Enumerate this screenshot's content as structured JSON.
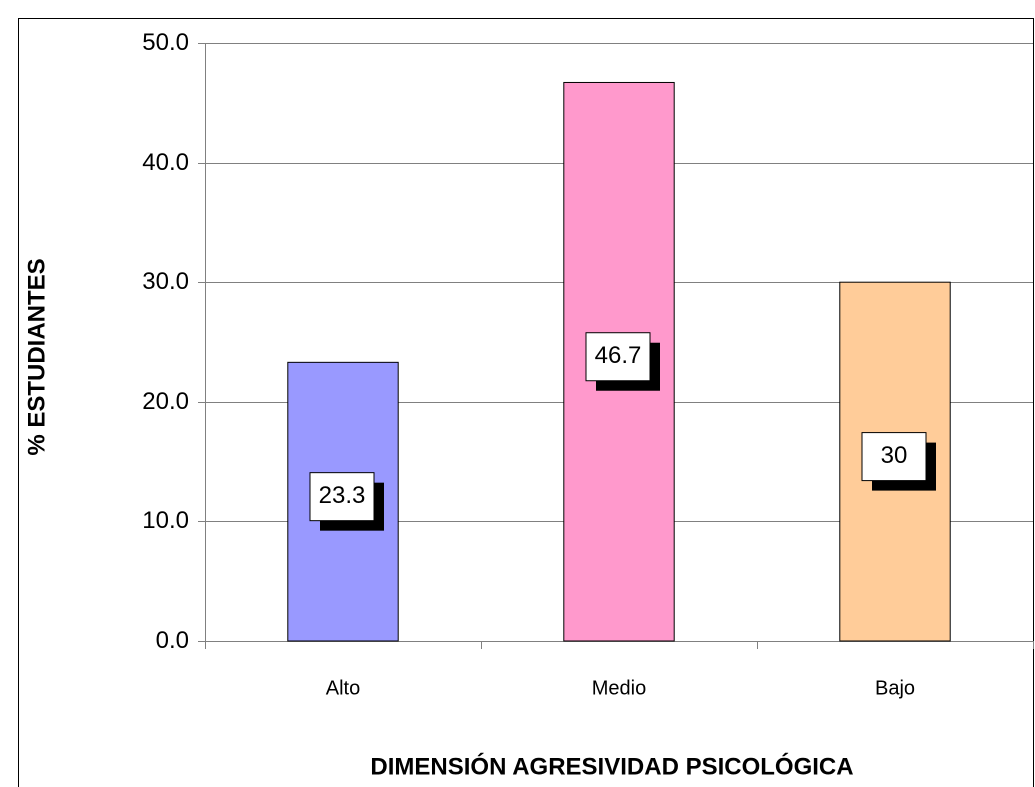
{
  "chart_data": {
    "type": "bar",
    "x_label": "DIMENSIÓN AGRESIVIDAD PSICOLÓGICA",
    "y_label": "% ESTUDIANTES",
    "categories": [
      "Alto",
      "Medio",
      "Bajo"
    ],
    "values": [
      23.3,
      46.7,
      30.0
    ],
    "colors": [
      "#9999ff",
      "#ff99cc",
      "#ffcc99"
    ],
    "ylim": [
      0,
      50
    ],
    "yticks": [
      {
        "value": 0,
        "label": "0.0"
      },
      {
        "value": 10,
        "label": "10.0"
      },
      {
        "value": 20,
        "label": "20.0"
      },
      {
        "value": 30,
        "label": "30.0"
      },
      {
        "value": 40,
        "label": "40.0"
      },
      {
        "value": 50,
        "label": "50.0"
      }
    ],
    "grid": true
  }
}
